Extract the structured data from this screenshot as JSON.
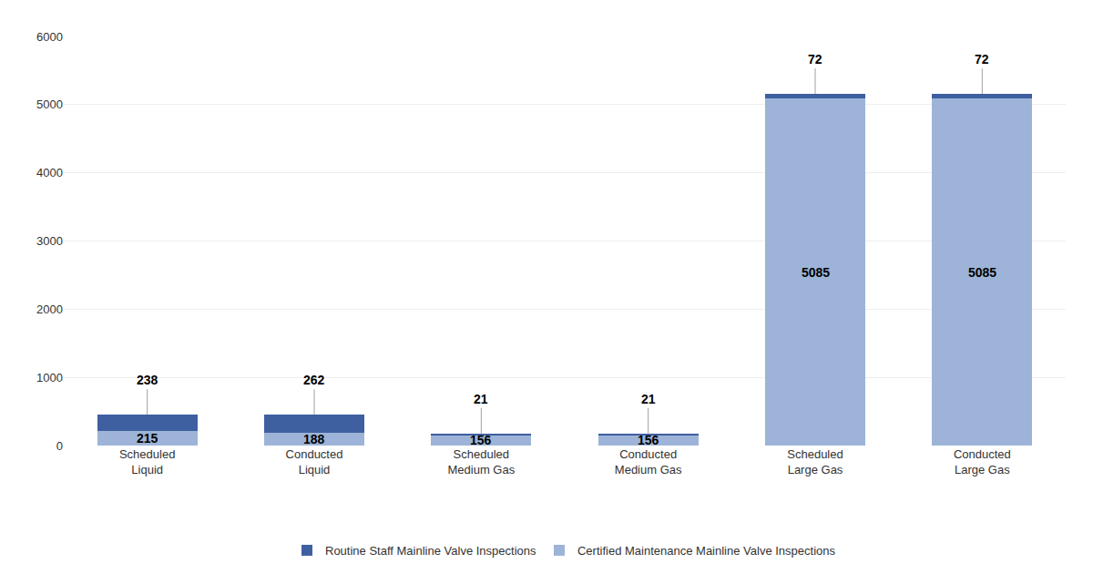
{
  "chart_data": {
    "type": "bar",
    "stacked": true,
    "categories": [
      "Scheduled\nLiquid",
      "Conducted\nLiquid",
      "Scheduled\nMedium Gas",
      "Conducted\nMedium Gas",
      "Scheduled\nLarge Gas",
      "Conducted\nLarge Gas"
    ],
    "series": [
      {
        "name": "Certified Maintenance Mainline Valve Inspections",
        "color": "#9DB4D8",
        "values": [
          215,
          188,
          156,
          156,
          5085,
          5085
        ]
      },
      {
        "name": "Routine Staff Mainline Valve Inspections",
        "color": "#3E5FA0",
        "values": [
          238,
          262,
          21,
          21,
          72,
          72
        ]
      }
    ],
    "ylim": [
      0,
      6000
    ],
    "yticks": [
      0,
      1000,
      2000,
      3000,
      4000,
      5000,
      6000
    ],
    "grid": true,
    "legend": "bottom",
    "data_labels": true
  }
}
